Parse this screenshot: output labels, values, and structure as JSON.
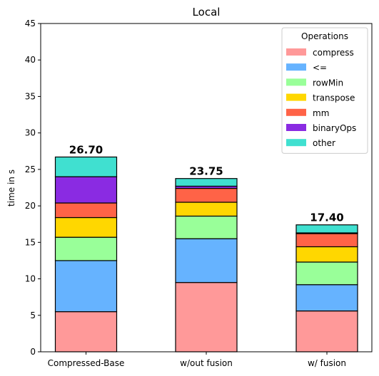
{
  "chart_data": {
    "type": "bar",
    "stacked": true,
    "title": "Local",
    "xlabel": "",
    "ylabel": "time in s",
    "ylim": [
      0,
      45
    ],
    "yticks": [
      0,
      5,
      10,
      15,
      20,
      25,
      30,
      35,
      40,
      45
    ],
    "categories": [
      "Compressed-Base",
      "w/out fusion",
      "w/ fusion"
    ],
    "totals": [
      "26.70",
      "23.75",
      "17.40"
    ],
    "legend": {
      "title": "Operations",
      "position": "top-right"
    },
    "series": [
      {
        "name": "compress",
        "color": "#ff9999",
        "values": [
          5.5,
          9.5,
          5.6
        ]
      },
      {
        "name": "<=",
        "color": "#66b3ff",
        "values": [
          7.0,
          6.0,
          3.6
        ]
      },
      {
        "name": "rowMin",
        "color": "#99ff99",
        "values": [
          3.2,
          3.1,
          3.1
        ]
      },
      {
        "name": "transpose",
        "color": "#ffd700",
        "values": [
          2.7,
          1.9,
          2.1
        ]
      },
      {
        "name": "mm",
        "color": "#ff6347",
        "values": [
          2.0,
          1.9,
          1.8
        ]
      },
      {
        "name": "binaryOps",
        "color": "#8a2be2",
        "values": [
          3.6,
          0.3,
          0.1
        ]
      },
      {
        "name": "other",
        "color": "#40e0d0",
        "values": [
          2.7,
          1.05,
          1.1
        ]
      }
    ]
  }
}
